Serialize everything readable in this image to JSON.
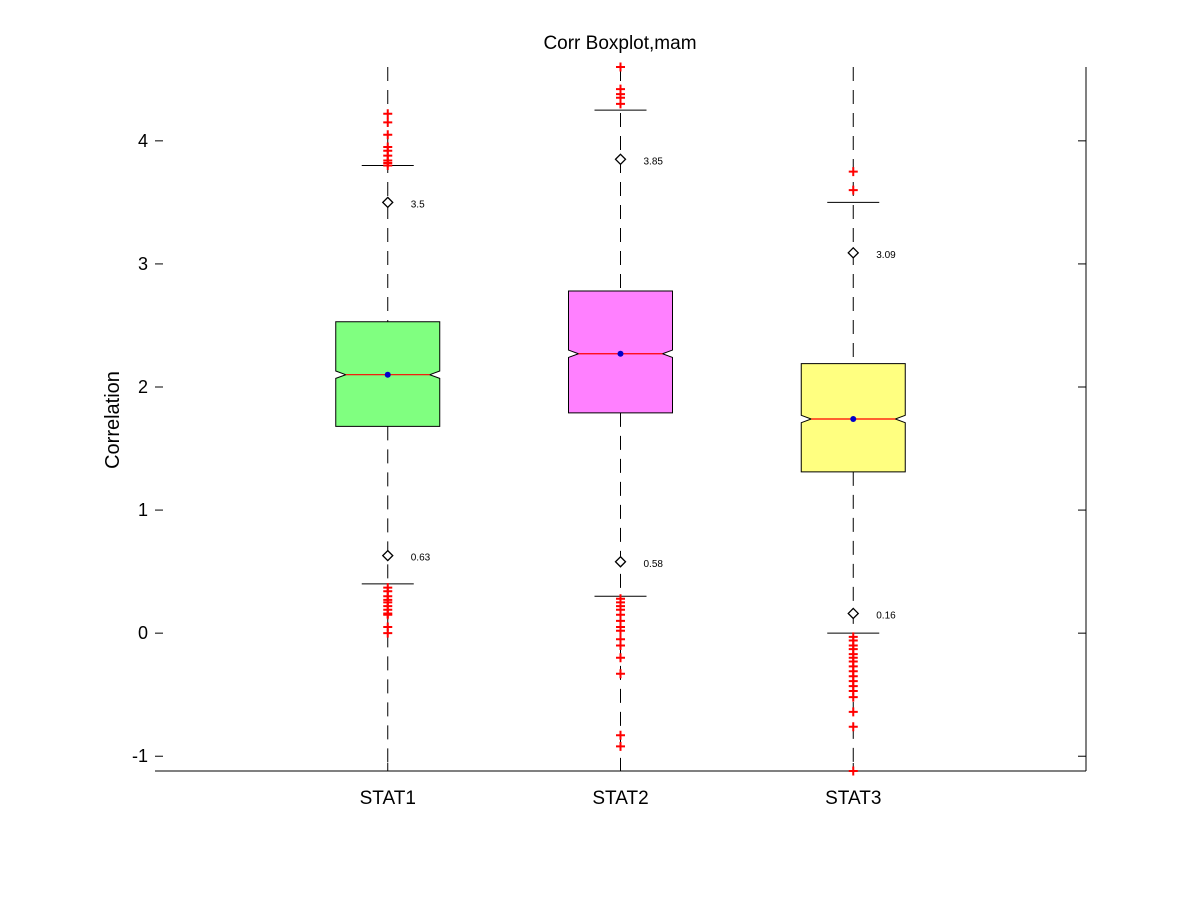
{
  "chart_data": {
    "type": "boxplot",
    "title": "Corr Boxplot,mam",
    "xlabel": "",
    "ylabel": "Correlation",
    "ylim": [
      -1.12,
      4.6
    ],
    "yticks": [
      -1,
      0,
      1,
      2,
      3,
      4
    ],
    "ytick_labels": [
      "-1",
      "0",
      "1",
      "2",
      "3",
      "4"
    ],
    "grid": false,
    "legend": "none",
    "notched": true,
    "categories": [
      "STAT1",
      "STAT2",
      "STAT3"
    ],
    "boxes": [
      {
        "category": "STAT1",
        "color": "#80ff80",
        "q1": 1.68,
        "median": 2.1,
        "q3": 2.53,
        "notch_low": 2.07,
        "notch_high": 2.13,
        "mean": 2.1,
        "whisker_low": 0.4,
        "whisker_high": 3.8,
        "marker_low": 0.63,
        "marker_high": 3.5,
        "marker_low_label": "0.63",
        "marker_high_label": "3.5",
        "outliers": [
          4.22,
          4.15,
          4.05,
          3.95,
          3.92,
          3.88,
          3.84,
          3.82,
          3.8,
          0.37,
          0.34,
          0.3,
          0.27,
          0.25,
          0.22,
          0.19,
          0.16,
          0.15,
          0.05,
          0.0
        ]
      },
      {
        "category": "STAT2",
        "color": "#ff80ff",
        "q1": 1.79,
        "median": 2.27,
        "q3": 2.78,
        "notch_low": 2.24,
        "notch_high": 2.3,
        "mean": 2.27,
        "whisker_low": 0.3,
        "whisker_high": 4.25,
        "marker_low": 0.58,
        "marker_high": 3.85,
        "marker_low_label": "0.58",
        "marker_high_label": "3.85",
        "outliers": [
          4.6,
          4.42,
          4.38,
          4.35,
          4.3,
          0.28,
          0.25,
          0.22,
          0.19,
          0.15,
          0.1,
          0.05,
          0.02,
          -0.05,
          -0.1,
          -0.2,
          -0.33,
          -0.83,
          -0.92
        ]
      },
      {
        "category": "STAT3",
        "color": "#ffff80",
        "q1": 1.31,
        "median": 1.74,
        "q3": 2.19,
        "notch_low": 1.71,
        "notch_high": 1.77,
        "mean": 1.74,
        "whisker_low": 0.0,
        "whisker_high": 3.5,
        "marker_low": 0.16,
        "marker_high": 3.09,
        "marker_low_label": "0.16",
        "marker_high_label": "3.09",
        "outliers": [
          3.75,
          3.6,
          -0.03,
          -0.06,
          -0.1,
          -0.13,
          -0.17,
          -0.2,
          -0.23,
          -0.27,
          -0.31,
          -0.35,
          -0.39,
          -0.43,
          -0.47,
          -0.52,
          -0.64,
          -0.76,
          -1.12
        ]
      }
    ],
    "style": {
      "outlier_color": "#ff0000",
      "mean_color": "#0000cc",
      "median_color": "#ff0000",
      "axis_color": "#000000"
    }
  }
}
